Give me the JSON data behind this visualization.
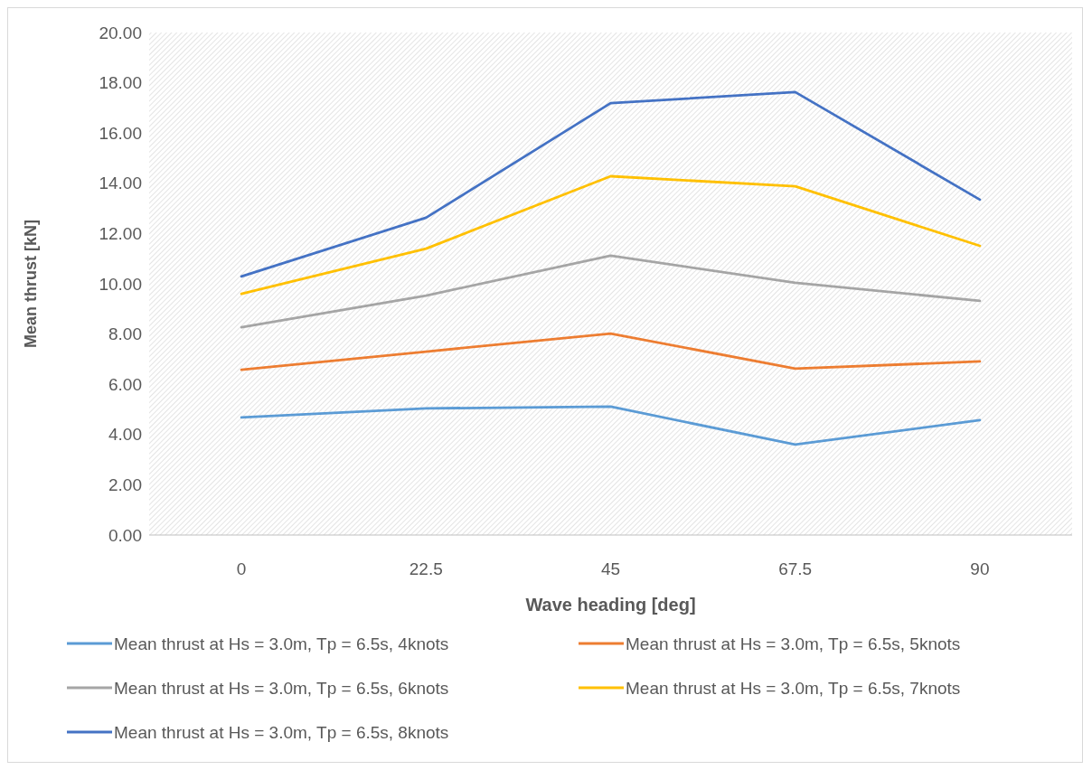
{
  "chart_data": {
    "type": "line",
    "xlabel": "Wave heading [deg]",
    "ylabel": "Mean thrust  [kN]",
    "categories": [
      "0",
      "22.5",
      "45",
      "67.5",
      "90"
    ],
    "ylim": [
      0,
      20
    ],
    "yticks": [
      {
        "value": 0,
        "label": "0.00"
      },
      {
        "value": 2,
        "label": "2.00"
      },
      {
        "value": 4,
        "label": "4.00"
      },
      {
        "value": 6,
        "label": "6.00"
      },
      {
        "value": 8,
        "label": "8.00"
      },
      {
        "value": 10,
        "label": "10.00"
      },
      {
        "value": 12,
        "label": "12.00"
      },
      {
        "value": 14,
        "label": "14.00"
      },
      {
        "value": 16,
        "label": "16.00"
      },
      {
        "value": 18,
        "label": "18.00"
      },
      {
        "value": 20,
        "label": "20.00"
      }
    ],
    "grid": false,
    "legend": "bottom",
    "marker": "none",
    "line_style": "solid",
    "series": [
      {
        "name": "Mean thrust at Hs = 3.0m, Tp = 6.5s, 4knots",
        "color": "#5b9bd5",
        "values": [
          4.68,
          5.04,
          5.11,
          3.6,
          4.57
        ]
      },
      {
        "name": "Mean thrust at Hs = 3.0m, Tp = 6.5s, 5knots",
        "color": "#ed7d31",
        "values": [
          6.58,
          7.3,
          8.02,
          6.62,
          6.91
        ]
      },
      {
        "name": "Mean thrust at Hs = 3.0m, Tp = 6.5s, 6knots",
        "color": "#a5a5a5",
        "values": [
          8.27,
          9.53,
          11.12,
          10.04,
          9.32
        ]
      },
      {
        "name": "Mean thrust at Hs = 3.0m, Tp = 6.5s, 7knots",
        "color": "#ffc000",
        "values": [
          9.6,
          11.4,
          14.28,
          13.88,
          11.51
        ]
      },
      {
        "name": "Mean thrust at Hs = 3.0m, Tp = 6.5s, 8knots",
        "color": "#4472c4",
        "values": [
          10.29,
          12.63,
          17.19,
          17.63,
          13.35
        ]
      }
    ]
  }
}
